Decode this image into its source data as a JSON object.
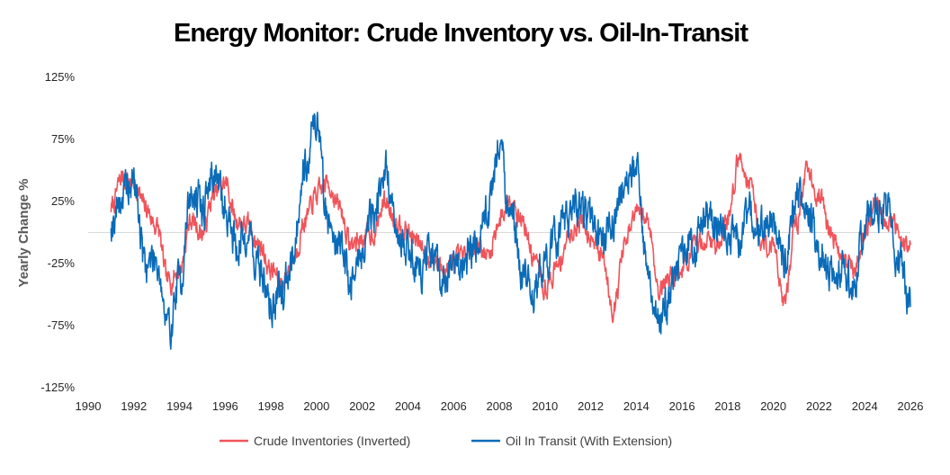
{
  "chart_data": {
    "type": "line",
    "title": "Energy Monitor: Crude Inventory vs. Oil-In-Transit",
    "xlabel": "",
    "ylabel": "Yearly Change %",
    "xlim": [
      1990,
      2026
    ],
    "ylim": [
      -125,
      125
    ],
    "x_ticks": [
      1990,
      1992,
      1994,
      1996,
      1998,
      2000,
      2002,
      2004,
      2006,
      2008,
      2010,
      2012,
      2014,
      2016,
      2018,
      2020,
      2022,
      2024,
      2026
    ],
    "x_tick_labels": [
      "1990",
      "1992",
      "1994",
      "1996",
      "1998",
      "2000",
      "2002",
      "2004",
      "2006",
      "2008",
      "2010",
      "2012",
      "2014",
      "2016",
      "2018",
      "2020",
      "2022",
      "2024",
      "2026"
    ],
    "y_ticks": [
      125,
      75,
      25,
      -25,
      -75,
      -125
    ],
    "y_tick_labels": [
      "125%",
      "75%",
      "25%",
      "-25%",
      "-75%",
      "-125%"
    ],
    "grid": false,
    "zero_line": true,
    "legend_position": "bottom",
    "series": [
      {
        "name": "Crude Inventories (Inverted)",
        "color": "#f0545a",
        "x": [
          1991.0,
          1991.5,
          1992.0,
          1992.5,
          1993.0,
          1993.5,
          1994.0,
          1994.5,
          1995.0,
          1995.5,
          1996.0,
          1996.5,
          1997.0,
          1997.5,
          1998.0,
          1998.5,
          1999.0,
          1999.5,
          2000.0,
          2000.5,
          2001.0,
          2001.5,
          2002.0,
          2002.5,
          2003.0,
          2003.5,
          2004.0,
          2004.5,
          2005.0,
          2005.5,
          2006.0,
          2006.5,
          2007.0,
          2007.5,
          2008.0,
          2008.5,
          2009.0,
          2009.5,
          2010.0,
          2010.5,
          2011.0,
          2011.5,
          2012.0,
          2012.5,
          2013.0,
          2013.5,
          2014.0,
          2014.5,
          2015.0,
          2015.5,
          2016.0,
          2016.5,
          2017.0,
          2017.5,
          2018.0,
          2018.5,
          2019.0,
          2019.5,
          2020.0,
          2020.5,
          2021.0,
          2021.5,
          2022.0,
          2022.5,
          2023.0,
          2023.5,
          2024.0,
          2024.5,
          2025.0,
          2025.5,
          2026.0
        ],
        "values": [
          20,
          45,
          40,
          20,
          5,
          -40,
          -30,
          10,
          0,
          30,
          40,
          10,
          5,
          -10,
          -30,
          -40,
          -20,
          10,
          30,
          40,
          20,
          -10,
          -5,
          0,
          25,
          10,
          0,
          -10,
          -20,
          -30,
          -25,
          -20,
          -5,
          -20,
          10,
          30,
          10,
          -20,
          -45,
          -30,
          -5,
          10,
          0,
          -20,
          -60,
          -10,
          15,
          10,
          -45,
          -35,
          -30,
          -15,
          -5,
          -10,
          10,
          60,
          40,
          -10,
          -10,
          -55,
          10,
          50,
          30,
          0,
          -20,
          -30,
          0,
          25,
          10,
          0,
          -10
        ]
      },
      {
        "name": "Oil In Transit (With Extension)",
        "color": "#0a6bb8",
        "x": [
          1991.0,
          1991.5,
          1992.0,
          1992.5,
          1993.0,
          1993.5,
          1994.0,
          1994.5,
          1995.0,
          1995.5,
          1996.0,
          1996.5,
          1997.0,
          1997.5,
          1998.0,
          1998.5,
          1999.0,
          1999.5,
          2000.0,
          2000.5,
          2001.0,
          2001.5,
          2002.0,
          2002.5,
          2003.0,
          2003.5,
          2004.0,
          2004.5,
          2005.0,
          2005.5,
          2006.0,
          2006.5,
          2007.0,
          2007.5,
          2008.0,
          2008.5,
          2009.0,
          2009.5,
          2010.0,
          2010.5,
          2011.0,
          2011.5,
          2012.0,
          2012.5,
          2013.0,
          2013.5,
          2014.0,
          2014.5,
          2015.0,
          2015.5,
          2016.0,
          2016.5,
          2017.0,
          2017.5,
          2018.0,
          2018.5,
          2019.0,
          2019.5,
          2020.0,
          2020.5,
          2021.0,
          2021.5,
          2022.0,
          2022.5,
          2023.0,
          2023.5,
          2024.0,
          2024.5,
          2025.0,
          2025.5,
          2026.0
        ],
        "values": [
          10,
          30,
          40,
          -25,
          -20,
          -80,
          -40,
          30,
          20,
          50,
          20,
          -10,
          0,
          -30,
          -60,
          -50,
          -10,
          60,
          90,
          10,
          -10,
          -40,
          -15,
          20,
          50,
          0,
          -10,
          -30,
          -20,
          -40,
          -30,
          -20,
          -5,
          20,
          70,
          10,
          -30,
          -50,
          -25,
          -5,
          10,
          20,
          10,
          -10,
          10,
          40,
          50,
          -30,
          -70,
          -50,
          -20,
          -10,
          10,
          0,
          -10,
          -5,
          10,
          0,
          10,
          -20,
          30,
          15,
          -10,
          -30,
          -30,
          -40,
          10,
          20,
          20,
          -20,
          -60
        ]
      }
    ]
  }
}
